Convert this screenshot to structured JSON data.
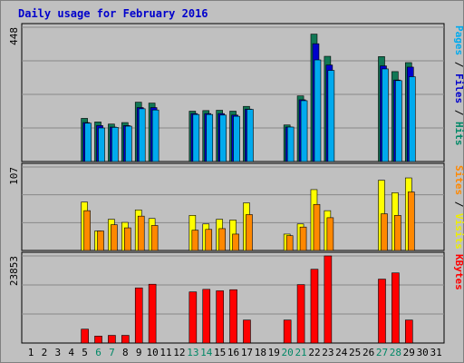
{
  "chart_data": {
    "type": "bar",
    "title": "Daily usage for February 2016",
    "days": [
      "1",
      "2",
      "3",
      "4",
      "5",
      "6",
      "7",
      "8",
      "9",
      "10",
      "11",
      "12",
      "13",
      "14",
      "15",
      "16",
      "17",
      "18",
      "19",
      "20",
      "21",
      "22",
      "23",
      "24",
      "25",
      "26",
      "27",
      "28",
      "29",
      "30",
      "31"
    ],
    "weekend_days": [
      6,
      7,
      13,
      14,
      20,
      21,
      27,
      28
    ],
    "panels": [
      {
        "id": "hits-files-pages",
        "max_label": "448",
        "ylim": [
          0,
          448
        ],
        "side_label": [
          {
            "text": "Pages",
            "color": "#00aaee"
          },
          {
            "text": " / ",
            "color": "#000000"
          },
          {
            "text": "Files",
            "color": "#0000cc"
          },
          {
            "text": " / ",
            "color": "#000000"
          },
          {
            "text": "Hits",
            "color": "#008866"
          }
        ],
        "series": [
          {
            "name": "Hits",
            "color": "#117755",
            "values": [
              0,
              0,
              0,
              0,
              144,
              132,
              125,
              130,
              198,
              195,
              0,
              0,
              168,
              170,
              171,
              168,
              184,
              0,
              0,
              122,
              219,
              425,
              351,
              0,
              0,
              0,
              350,
              300,
              330,
              0,
              0
            ]
          },
          {
            "name": "Files",
            "color": "#0000cc",
            "values": [
              0,
              0,
              0,
              0,
              130,
              120,
              115,
              120,
              180,
              180,
              0,
              0,
              160,
              160,
              160,
              155,
              175,
              0,
              0,
              115,
              206,
              393,
              322,
              0,
              0,
              0,
              319,
              272,
              315,
              0,
              0
            ]
          },
          {
            "name": "Pages",
            "color": "#00aaee",
            "values": [
              0,
              0,
              0,
              0,
              128,
              112,
              114,
              118,
              176,
              172,
              0,
              0,
              157,
              157,
              155,
              151,
              174,
              0,
              0,
              115,
              203,
              339,
              304,
              0,
              0,
              0,
              309,
              270,
              283,
              0,
              0
            ]
          }
        ]
      },
      {
        "id": "visits-sites",
        "max_label": "107",
        "ylim": [
          0,
          107
        ],
        "side_label": [
          {
            "text": "Sites",
            "color": "#ff8800"
          },
          {
            "text": " / ",
            "color": "#000000"
          },
          {
            "text": "Visits",
            "color": "#eeee00"
          }
        ],
        "series": [
          {
            "name": "Visits",
            "color": "#ffff00",
            "values": [
              0,
              0,
              0,
              0,
              62,
              25,
              40,
              36,
              52,
              41,
              0,
              0,
              45,
              34,
              40,
              39,
              61,
              0,
              0,
              21,
              34,
              78,
              51,
              0,
              0,
              0,
              90,
              74,
              93,
              0,
              0
            ]
          },
          {
            "name": "Sites",
            "color": "#ff8800",
            "values": [
              0,
              0,
              0,
              0,
              51,
              25,
              33,
              29,
              44,
              32,
              0,
              0,
              26,
              27,
              28,
              21,
              46,
              0,
              0,
              19,
              30,
              59,
              42,
              0,
              0,
              0,
              47,
              45,
              75,
              0,
              0
            ]
          }
        ]
      },
      {
        "id": "kbytes",
        "max_label": "23853",
        "ylim": [
          0,
          23853
        ],
        "side_label": [
          {
            "text": "KBytes",
            "color": "#ff0000"
          }
        ],
        "series": [
          {
            "name": "KBytes",
            "color": "#ff0000",
            "values": [
              0,
              0,
              0,
              0,
              3800,
              1900,
              2100,
              2100,
              15100,
              16100,
              0,
              0,
              14000,
              14700,
              14300,
              14600,
              6300,
              0,
              0,
              6300,
              16000,
              20200,
              23853,
              0,
              0,
              0,
              17500,
              19200,
              6300,
              0,
              0
            ]
          }
        ]
      }
    ]
  }
}
